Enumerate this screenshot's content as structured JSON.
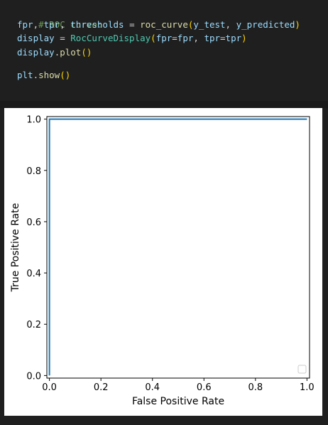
{
  "code": {
    "line1": "# ROC curve:",
    "line2": {
      "a": "fpr",
      "b": ", ",
      "c": "tpr",
      "d": ", ",
      "e": "thresholds",
      "f": " = ",
      "fn": "roc_curve",
      "p_open": "(",
      "arg1": "y_test",
      "sep": ", ",
      "arg2": "y_predicted",
      "p_close": ")"
    },
    "line3": {
      "v": "display",
      "eq": " = ",
      "cls": "RocCurveDisplay",
      "p_open": "(",
      "k1": "fpr",
      "eq1": "=",
      "v1": "fpr",
      "sep": ", ",
      "k2": "tpr",
      "eq2": "=",
      "v2": "tpr",
      "p_close": ")"
    },
    "line4": {
      "v": "display",
      "dot": ".",
      "fn": "plot",
      "parens": "()"
    },
    "line6": {
      "v": "plt",
      "dot": ".",
      "fn": "show",
      "parens": "()"
    }
  },
  "colors": {
    "curve": "#1f77b4",
    "background": "#1f1f1f",
    "plot_bg": "#ffffff"
  },
  "chart_data": {
    "type": "line",
    "xlabel": "False Positive Rate",
    "ylabel": "True Positive Rate",
    "xlim": [
      -0.01,
      1.01
    ],
    "ylim": [
      -0.01,
      1.01
    ],
    "xticks": [
      "0.0",
      "0.2",
      "0.4",
      "0.6",
      "0.8",
      "1.0"
    ],
    "yticks": [
      "0.0",
      "0.2",
      "0.4",
      "0.6",
      "0.8",
      "1.0"
    ],
    "grid": false,
    "legend": "lower-right",
    "series": [
      {
        "x": [
          0.0,
          0.0,
          1.0
        ],
        "y": [
          0.0,
          1.0,
          1.0
        ]
      }
    ]
  }
}
